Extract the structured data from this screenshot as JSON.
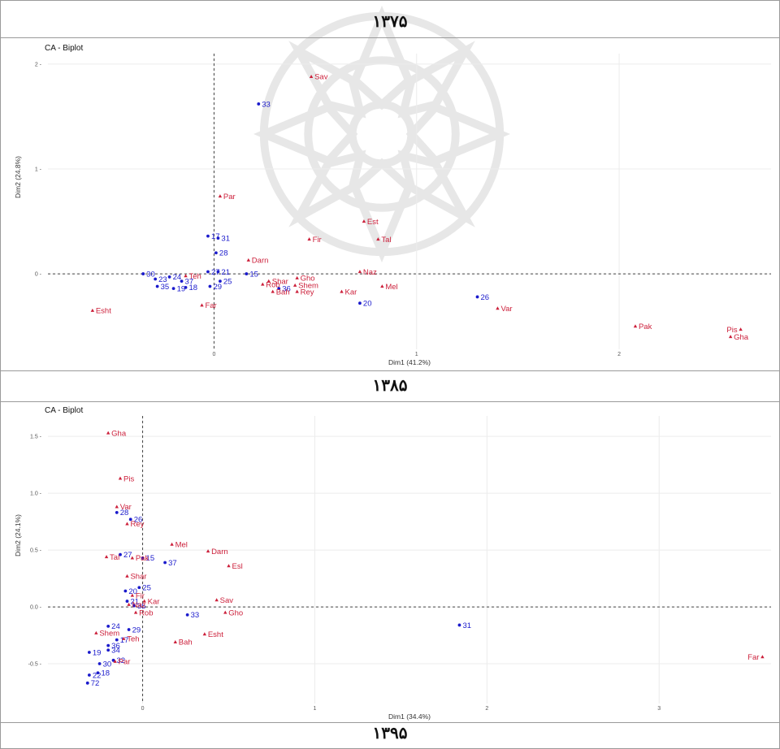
{
  "headers": [
    "۱۳۷۵",
    "۱۳۸۵",
    "۱۳۹۵"
  ],
  "colors": {
    "rows": "#1a1acc",
    "cols": "#cc1f3a",
    "grid": "#ececec",
    "axis": "#444444"
  },
  "chart_data": [
    {
      "type": "scatter",
      "title": "CA - Biplot",
      "xlabel": "Dim1 (41.2%)",
      "ylabel": "Dim2 (24.8%)",
      "xlim": [
        -0.82,
        2.75
      ],
      "ylim": [
        -0.72,
        2.1
      ],
      "xticks": [
        0,
        1,
        2
      ],
      "yticks": [
        0,
        1,
        2
      ],
      "series": [
        {
          "kind": "rows",
          "points": [
            {
              "label": "33",
              "x": 0.22,
              "y": 1.62
            },
            {
              "label": "17",
              "x": -0.03,
              "y": 0.36
            },
            {
              "label": "31",
              "x": 0.02,
              "y": 0.34
            },
            {
              "label": "28",
              "x": 0.01,
              "y": 0.2
            },
            {
              "label": "27",
              "x": -0.03,
              "y": 0.02
            },
            {
              "label": "21",
              "x": 0.02,
              "y": 0.02
            },
            {
              "label": "15",
              "x": 0.16,
              "y": 0.0
            },
            {
              "label": "30",
              "x": -0.35,
              "y": 0.0
            },
            {
              "label": "23",
              "x": -0.29,
              "y": -0.05
            },
            {
              "label": "24",
              "x": -0.22,
              "y": -0.03
            },
            {
              "label": "37",
              "x": -0.16,
              "y": -0.07
            },
            {
              "label": "25",
              "x": 0.03,
              "y": -0.07
            },
            {
              "label": "35",
              "x": -0.28,
              "y": -0.12
            },
            {
              "label": "19",
              "x": -0.2,
              "y": -0.14
            },
            {
              "label": "18",
              "x": -0.14,
              "y": -0.13
            },
            {
              "label": "29",
              "x": -0.02,
              "y": -0.12
            },
            {
              "label": "36",
              "x": 0.32,
              "y": -0.14
            },
            {
              "label": "20",
              "x": 0.72,
              "y": -0.28
            },
            {
              "label": "26",
              "x": 1.3,
              "y": -0.22
            }
          ]
        },
        {
          "kind": "cols",
          "points": [
            {
              "label": "Sav",
              "x": 0.48,
              "y": 1.88
            },
            {
              "label": "Par",
              "x": 0.03,
              "y": 0.74
            },
            {
              "label": "Est",
              "x": 0.74,
              "y": 0.5
            },
            {
              "label": "Tal",
              "x": 0.81,
              "y": 0.33
            },
            {
              "label": "Fir",
              "x": 0.47,
              "y": 0.33
            },
            {
              "label": "Darn",
              "x": 0.17,
              "y": 0.13
            },
            {
              "label": "Teh",
              "x": -0.14,
              "y": -0.02
            },
            {
              "label": "Gho",
              "x": 0.41,
              "y": -0.04
            },
            {
              "label": "Shar",
              "x": 0.27,
              "y": -0.07
            },
            {
              "label": "Rob",
              "x": 0.24,
              "y": -0.1
            },
            {
              "label": "Shem",
              "x": 0.4,
              "y": -0.11
            },
            {
              "label": "Naz",
              "x": 0.72,
              "y": 0.02
            },
            {
              "label": "Mel",
              "x": 0.83,
              "y": -0.12
            },
            {
              "label": "Bah",
              "x": 0.29,
              "y": -0.17
            },
            {
              "label": "Rey",
              "x": 0.41,
              "y": -0.17
            },
            {
              "label": "Kar",
              "x": 0.63,
              "y": -0.17
            },
            {
              "label": "Far",
              "x": -0.06,
              "y": -0.3
            },
            {
              "label": "Esht",
              "x": -0.6,
              "y": -0.35
            },
            {
              "label": "Var",
              "x": 1.4,
              "y": -0.33
            },
            {
              "label": "Pak",
              "x": 2.08,
              "y": -0.5
            },
            {
              "label": "Pis",
              "x": 2.6,
              "y": -0.53
            },
            {
              "label": "Gha",
              "x": 2.55,
              "y": -0.6
            }
          ]
        }
      ]
    },
    {
      "type": "scatter",
      "title": "CA - Biplot",
      "xlabel": "Dim1 (34.4%)",
      "ylabel": "Dim2 (24.1%)",
      "xlim": [
        -0.55,
        3.65
      ],
      "ylim": [
        -0.85,
        1.68
      ],
      "xticks": [
        0,
        1,
        2,
        3
      ],
      "yticks": [
        -0.5,
        0.0,
        0.5,
        1.0,
        1.5
      ],
      "ytick_labels": [
        "-0.5",
        "0.0",
        "0.5",
        "1.0",
        "1.5"
      ],
      "series": [
        {
          "kind": "rows",
          "points": [
            {
              "label": "28",
              "x": -0.15,
              "y": 0.83
            },
            {
              "label": "26",
              "x": -0.07,
              "y": 0.77
            },
            {
              "label": "27",
              "x": -0.13,
              "y": 0.46
            },
            {
              "label": "15",
              "x": 0.0,
              "y": 0.43
            },
            {
              "label": "37",
              "x": 0.13,
              "y": 0.39
            },
            {
              "label": "25",
              "x": -0.02,
              "y": 0.17
            },
            {
              "label": "20",
              "x": -0.1,
              "y": 0.14
            },
            {
              "label": "21",
              "x": -0.09,
              "y": 0.05
            },
            {
              "label": "35",
              "x": -0.05,
              "y": 0.01
            },
            {
              "label": "33",
              "x": 0.26,
              "y": -0.07
            },
            {
              "label": "24",
              "x": -0.2,
              "y": -0.17
            },
            {
              "label": "29",
              "x": -0.08,
              "y": -0.2
            },
            {
              "label": "36",
              "x": -0.2,
              "y": -0.34
            },
            {
              "label": "17",
              "x": -0.15,
              "y": -0.29
            },
            {
              "label": "19",
              "x": -0.31,
              "y": -0.4
            },
            {
              "label": "34",
              "x": -0.2,
              "y": -0.38
            },
            {
              "label": "30",
              "x": -0.25,
              "y": -0.5
            },
            {
              "label": "32",
              "x": -0.17,
              "y": -0.47
            },
            {
              "label": "18",
              "x": -0.26,
              "y": -0.58
            },
            {
              "label": "22",
              "x": -0.31,
              "y": -0.6
            },
            {
              "label": "72",
              "x": -0.32,
              "y": -0.67
            },
            {
              "label": "31",
              "x": 1.84,
              "y": -0.16
            }
          ]
        },
        {
          "kind": "cols",
          "points": [
            {
              "label": "Gha",
              "x": -0.2,
              "y": 1.53
            },
            {
              "label": "Pis",
              "x": -0.13,
              "y": 1.13
            },
            {
              "label": "Var",
              "x": -0.15,
              "y": 0.88
            },
            {
              "label": "Rey",
              "x": -0.09,
              "y": 0.73
            },
            {
              "label": "Tal",
              "x": -0.21,
              "y": 0.44
            },
            {
              "label": "Pak",
              "x": -0.06,
              "y": 0.43
            },
            {
              "label": "Mel",
              "x": 0.17,
              "y": 0.55
            },
            {
              "label": "Darn",
              "x": 0.38,
              "y": 0.49
            },
            {
              "label": "Esl",
              "x": 0.5,
              "y": 0.36
            },
            {
              "label": "Shar",
              "x": -0.09,
              "y": 0.27
            },
            {
              "label": "Fir",
              "x": -0.06,
              "y": 0.1
            },
            {
              "label": "Kar",
              "x": 0.01,
              "y": 0.05
            },
            {
              "label": "Naz",
              "x": -0.08,
              "y": 0.02
            },
            {
              "label": "Rob",
              "x": -0.04,
              "y": -0.05
            },
            {
              "label": "Sav",
              "x": 0.43,
              "y": 0.06
            },
            {
              "label": "Gho",
              "x": 0.48,
              "y": -0.05
            },
            {
              "label": "Shem",
              "x": -0.27,
              "y": -0.23
            },
            {
              "label": "Teh",
              "x": -0.11,
              "y": -0.28
            },
            {
              "label": "Esht",
              "x": 0.36,
              "y": -0.24
            },
            {
              "label": "Bah",
              "x": 0.19,
              "y": -0.31
            },
            {
              "label": "Par",
              "x": -0.16,
              "y": -0.48
            },
            {
              "label": "Far",
              "x": 3.6,
              "y": -0.44
            }
          ]
        }
      ]
    }
  ]
}
